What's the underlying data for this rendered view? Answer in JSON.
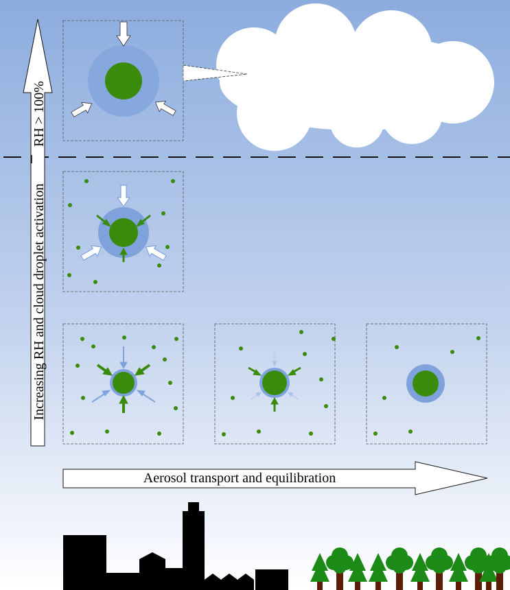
{
  "labels": {
    "vertical": "Increasing RH and cloud droplet activation",
    "vertical_threshold": "RH > 100%",
    "horizontal": "Aerosol transport and equilibration"
  },
  "colors": {
    "sky_top": "#8cacde",
    "sky_bottom": "#ffffff",
    "aerosol_core": "#3a8a0b",
    "water_shell": "#7fa2dc",
    "water_shell_large": "#86a8dd",
    "condensation_arrow": "#a9c3ea",
    "organic_arrow": "#3a8a0b",
    "city": "#000000",
    "tree_foliage": "#1c8a17",
    "tree_trunk": "#5c1e06",
    "cloud": "#ffffff"
  },
  "icons": {
    "cloud": "cloud-icon",
    "city": "city-silhouette-icon",
    "forest": "forest-icon"
  }
}
